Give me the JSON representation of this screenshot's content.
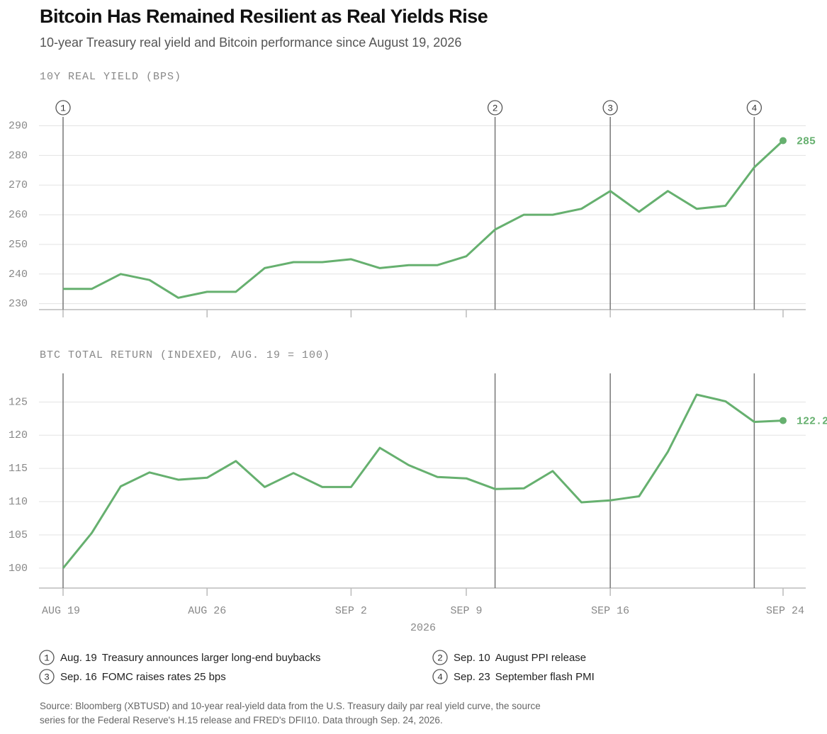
{
  "title": "Bitcoin Has Remained Resilient as Real Yields Rise",
  "subtitle": "10-year Treasury real yield and Bitcoin performance since August 19, 2026",
  "events": [
    {
      "number": "1",
      "date": "Aug. 19",
      "x": "2026-08-19",
      "label": "Treasury announces larger long-end buybacks"
    },
    {
      "number": "2",
      "date": "Sep. 10",
      "x": "2026-09-10",
      "label": "August PPI release"
    },
    {
      "number": "3",
      "date": "Sep. 16",
      "x": "2026-09-16",
      "label": "FOMC raises rates 25 bps"
    },
    {
      "number": "4",
      "date": "Sep. 23",
      "x": "2026-09-23",
      "label": "September flash PMI"
    }
  ],
  "source": "Source: Bloomberg (XBTUSD) and 10-year real-yield data from the U.S. Treasury daily par real yield curve, the source series for the Federal Reserve's H.15 release and FRED's DFII10. Data through Sep. 24, 2026.",
  "chart_data": [
    {
      "type": "line",
      "ylabel": "10Y REAL YIELD (BPS)",
      "color": "#66b06f",
      "grid": true,
      "x": [
        "2026-08-19",
        "2026-08-20",
        "2026-08-21",
        "2026-08-24",
        "2026-08-25",
        "2026-08-26",
        "2026-08-27",
        "2026-08-28",
        "2026-08-31",
        "2026-09-01",
        "2026-09-02",
        "2026-09-03",
        "2026-09-04",
        "2026-09-08",
        "2026-09-09",
        "2026-09-10",
        "2026-09-11",
        "2026-09-14",
        "2026-09-15",
        "2026-09-16",
        "2026-09-17",
        "2026-09-18",
        "2026-09-21",
        "2026-09-22",
        "2026-09-23",
        "2026-09-24"
      ],
      "values": [
        235,
        235,
        240,
        238,
        232,
        234,
        234,
        242,
        244,
        244,
        245,
        242,
        243,
        243,
        246,
        255,
        260,
        260,
        262,
        268,
        261,
        268,
        262,
        263,
        276,
        285
      ],
      "ylim": [
        228,
        293
      ],
      "yticks": [
        230,
        240,
        250,
        260,
        270,
        280,
        290
      ]
    },
    {
      "type": "line",
      "ylabel": "BTC TOTAL RETURN (INDEXED, AUG. 19 = 100)",
      "color": "#66b06f",
      "grid": true,
      "xlabel": "2026",
      "x": [
        "2026-08-19",
        "2026-08-20",
        "2026-08-21",
        "2026-08-24",
        "2026-08-25",
        "2026-08-26",
        "2026-08-27",
        "2026-08-28",
        "2026-08-31",
        "2026-09-01",
        "2026-09-02",
        "2026-09-03",
        "2026-09-04",
        "2026-09-08",
        "2026-09-09",
        "2026-09-10",
        "2026-09-11",
        "2026-09-14",
        "2026-09-15",
        "2026-09-16",
        "2026-09-17",
        "2026-09-18",
        "2026-09-21",
        "2026-09-22",
        "2026-09-23",
        "2026-09-24"
      ],
      "values": [
        100,
        105.3,
        112.3,
        114.4,
        113.3,
        113.6,
        116.1,
        112.2,
        114.3,
        112.2,
        112.2,
        118.1,
        115.5,
        113.7,
        113.5,
        111.9,
        112.0,
        114.6,
        109.9,
        110.2,
        110.8,
        117.5,
        126.1,
        125.1,
        122.0,
        122.2
      ],
      "ylim": [
        97,
        129.3
      ],
      "yticks": [
        100,
        105,
        110,
        115,
        120,
        125
      ],
      "xticks": [
        {
          "value": "2026-08-19",
          "label": "AUG 19"
        },
        {
          "value": "2026-08-26",
          "label": "AUG 26"
        },
        {
          "value": "2026-09-02",
          "label": "SEP 2"
        },
        {
          "value": "2026-09-09",
          "label": "SEP 9"
        },
        {
          "value": "2026-09-16",
          "label": "SEP 16"
        },
        {
          "value": "2026-09-24",
          "label": "SEP 24"
        }
      ]
    }
  ]
}
